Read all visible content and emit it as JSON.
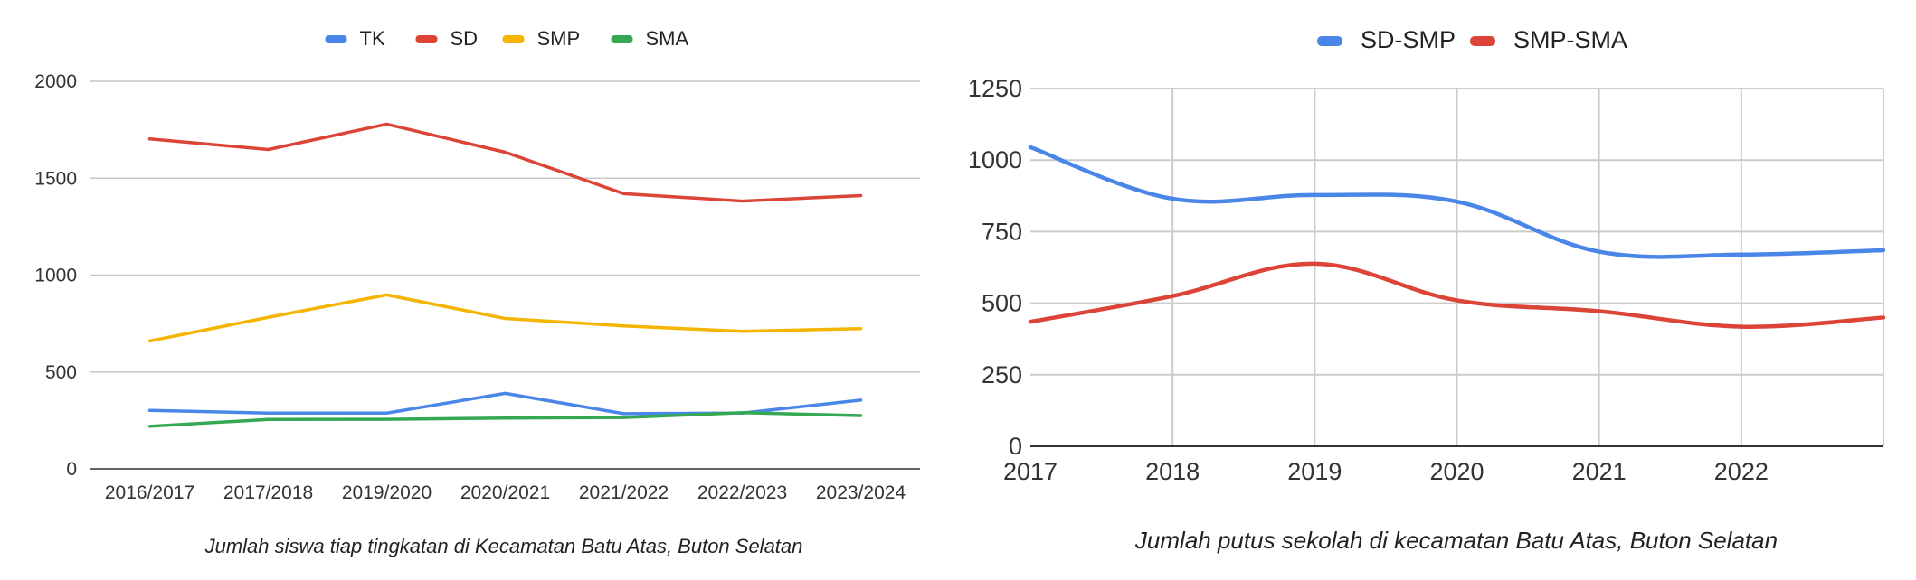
{
  "chart_data": [
    {
      "type": "line",
      "title": "",
      "caption": "Jumlah siswa tiap tingkatan di Kecamatan Batu Atas, Buton Selatan",
      "xlabel": "",
      "ylabel": "",
      "categories": [
        "2016/2017",
        "2017/2018",
        "2019/2020",
        "2020/2021",
        "2021/2022",
        "2022/2023",
        "2023/2024"
      ],
      "ylim": [
        0,
        2000
      ],
      "yticks": [
        "0",
        "500",
        "1000",
        "1500",
        "2000"
      ],
      "grid": true,
      "legend_position": "top",
      "smooth": false,
      "series": [
        {
          "name": "TK",
          "color": "#4a86e8",
          "values": [
            302,
            288,
            288,
            390,
            285,
            288,
            355
          ]
        },
        {
          "name": "SD",
          "color": "#db4437",
          "values": [
            1703,
            1648,
            1779,
            1634,
            1420,
            1382,
            1410
          ]
        },
        {
          "name": "SMP",
          "color": "#f4b400",
          "values": [
            660,
            782,
            898,
            776,
            738,
            710,
            724
          ]
        },
        {
          "name": "SMA",
          "color": "#34a853",
          "values": [
            220,
            255,
            256,
            262,
            265,
            290,
            275
          ]
        }
      ]
    },
    {
      "type": "line",
      "title": "",
      "caption": "Jumlah putus sekolah di kecamatan Batu Atas, Buton Selatan",
      "xlabel": "",
      "ylabel": "",
      "x": [
        2017,
        2018,
        2019,
        2020,
        2021,
        2022,
        2023
      ],
      "xticks": [
        "2017",
        "2018",
        "2019",
        "2020",
        "2021",
        "2022"
      ],
      "xlim": [
        2017,
        2023
      ],
      "ylim": [
        0,
        1250
      ],
      "yticks": [
        "0",
        "250",
        "500",
        "750",
        "1000",
        "1250"
      ],
      "grid": true,
      "legend_position": "top",
      "smooth": true,
      "series": [
        {
          "name": "SD-SMP",
          "color": "#4a86e8",
          "values": [
            1045,
            865,
            878,
            855,
            680,
            670,
            685
          ]
        },
        {
          "name": "SMP-SMA",
          "color": "#db4437",
          "values": [
            435,
            525,
            638,
            510,
            472,
            418,
            450
          ]
        }
      ]
    }
  ]
}
